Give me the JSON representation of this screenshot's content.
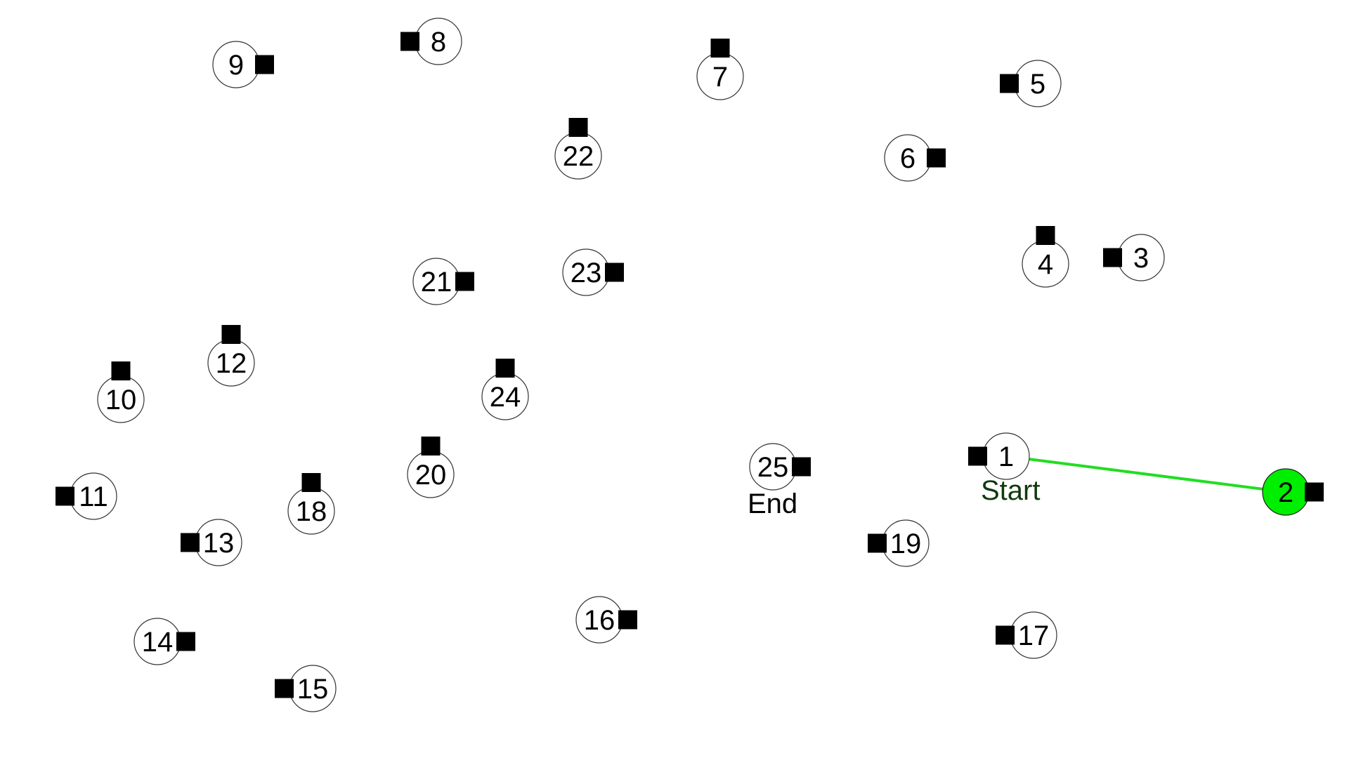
{
  "puzzle": {
    "start_label": "Start",
    "end_label": "End",
    "start_node": "1",
    "end_node": "25",
    "path": [
      "1",
      "2"
    ],
    "colors": {
      "path": "#22dd22",
      "visited_node": "#00ee00",
      "node_fill": "#ffffff",
      "node_stroke": "#333333",
      "marker": "#000000"
    },
    "nodes": [
      {
        "label": "1",
        "visited": false
      },
      {
        "label": "2",
        "visited": true
      },
      {
        "label": "3",
        "visited": false
      },
      {
        "label": "4",
        "visited": false
      },
      {
        "label": "5",
        "visited": false
      },
      {
        "label": "6",
        "visited": false
      },
      {
        "label": "7",
        "visited": false
      },
      {
        "label": "8",
        "visited": false
      },
      {
        "label": "9",
        "visited": false
      },
      {
        "label": "10",
        "visited": false
      },
      {
        "label": "11",
        "visited": false
      },
      {
        "label": "12",
        "visited": false
      },
      {
        "label": "13",
        "visited": false
      },
      {
        "label": "14",
        "visited": false
      },
      {
        "label": "15",
        "visited": false
      },
      {
        "label": "16",
        "visited": false
      },
      {
        "label": "17",
        "visited": false
      },
      {
        "label": "18",
        "visited": false
      },
      {
        "label": "19",
        "visited": false
      },
      {
        "label": "20",
        "visited": false
      },
      {
        "label": "21",
        "visited": false
      },
      {
        "label": "22",
        "visited": false
      },
      {
        "label": "23",
        "visited": false
      },
      {
        "label": "24",
        "visited": false
      },
      {
        "label": "25",
        "visited": false
      }
    ]
  }
}
